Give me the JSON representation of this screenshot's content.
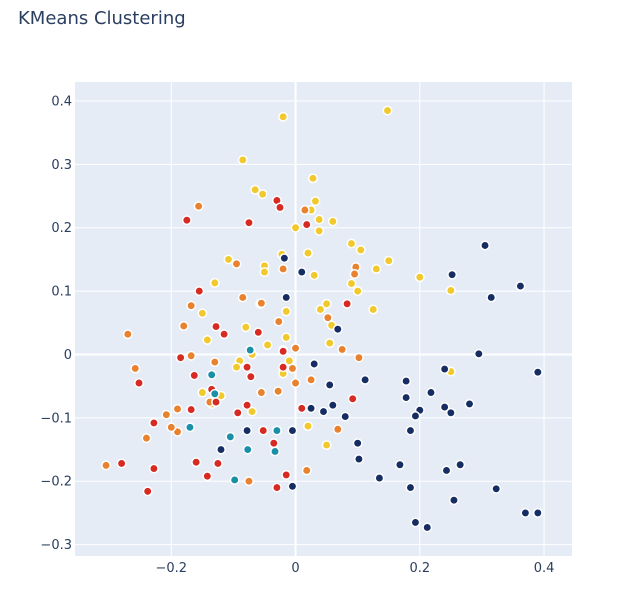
{
  "chart_data": {
    "type": "scatter",
    "title": "KMeans Clustering",
    "xlabel": "",
    "ylabel": "",
    "xlim": [
      -0.355,
      0.445
    ],
    "ylim": [
      -0.318,
      0.43
    ],
    "x_ticks": [
      -0.2,
      0,
      0.2,
      0.4
    ],
    "x_tick_labels": [
      "−0.2",
      "0",
      "0.2",
      "0.4"
    ],
    "y_ticks": [
      -0.3,
      -0.2,
      -0.1,
      0,
      0.1,
      0.2,
      0.3,
      0.4
    ],
    "y_tick_labels": [
      "−0.3",
      "−0.2",
      "−0.1",
      "0",
      "0.1",
      "0.2",
      "0.3",
      "0.4"
    ],
    "grid": true,
    "legend": "none",
    "plot_background": "#e5ecf6",
    "series": [
      {
        "color": "#f2c92c",
        "points": [
          [
            -0.02,
            0.375
          ],
          [
            0.148,
            0.385
          ],
          [
            -0.085,
            0.307
          ],
          [
            0.028,
            0.278
          ],
          [
            -0.065,
            0.26
          ],
          [
            -0.053,
            0.253
          ],
          [
            0.032,
            0.242
          ],
          [
            0.025,
            0.228
          ],
          [
            0.038,
            0.213
          ],
          [
            0.06,
            0.21
          ],
          [
            0.0,
            0.2
          ],
          [
            0.038,
            0.195
          ],
          [
            -0.108,
            0.15
          ],
          [
            0.09,
            0.175
          ],
          [
            0.105,
            0.165
          ],
          [
            -0.022,
            0.158
          ],
          [
            0.02,
            0.16
          ],
          [
            0.15,
            0.148
          ],
          [
            -0.05,
            0.14
          ],
          [
            0.13,
            0.135
          ],
          [
            -0.05,
            0.13
          ],
          [
            0.03,
            0.125
          ],
          [
            0.2,
            0.122
          ],
          [
            -0.13,
            0.113
          ],
          [
            0.09,
            0.112
          ],
          [
            0.1,
            0.1
          ],
          [
            0.25,
            0.101
          ],
          [
            -0.057,
            0.08
          ],
          [
            0.05,
            0.08
          ],
          [
            0.04,
            0.071
          ],
          [
            0.125,
            0.071
          ],
          [
            -0.15,
            0.065
          ],
          [
            -0.015,
            0.068
          ],
          [
            0.058,
            0.046
          ],
          [
            -0.08,
            0.043
          ],
          [
            -0.015,
            0.027
          ],
          [
            -0.142,
            0.023
          ],
          [
            0.055,
            0.018
          ],
          [
            -0.045,
            0.015
          ],
          [
            -0.02,
            0.007
          ],
          [
            -0.07,
            0.0
          ],
          [
            -0.09,
            -0.01
          ],
          [
            -0.01,
            -0.01
          ],
          [
            -0.095,
            -0.02
          ],
          [
            0.25,
            -0.027
          ],
          [
            -0.02,
            -0.03
          ],
          [
            -0.15,
            -0.06
          ],
          [
            -0.12,
            -0.065
          ],
          [
            -0.135,
            -0.078
          ],
          [
            -0.07,
            -0.09
          ],
          [
            0.02,
            -0.113
          ],
          [
            0.05,
            -0.143
          ]
        ]
      },
      {
        "color": "#e8822e",
        "points": [
          [
            -0.156,
            0.234
          ],
          [
            0.015,
            0.228
          ],
          [
            -0.02,
            0.135
          ],
          [
            -0.095,
            0.143
          ],
          [
            0.097,
            0.138
          ],
          [
            0.095,
            0.127
          ],
          [
            -0.168,
            0.077
          ],
          [
            -0.055,
            0.081
          ],
          [
            -0.085,
            0.09
          ],
          [
            0.052,
            0.058
          ],
          [
            -0.18,
            0.045
          ],
          [
            -0.027,
            0.052
          ],
          [
            -0.27,
            0.032
          ],
          [
            0.0,
            0.01
          ],
          [
            0.075,
            0.008
          ],
          [
            -0.13,
            -0.012
          ],
          [
            0.102,
            -0.005
          ],
          [
            -0.168,
            -0.002
          ],
          [
            -0.258,
            -0.022
          ],
          [
            -0.005,
            -0.022
          ],
          [
            0.025,
            -0.04
          ],
          [
            0.0,
            -0.045
          ],
          [
            -0.055,
            -0.06
          ],
          [
            -0.028,
            -0.058
          ],
          [
            -0.19,
            -0.086
          ],
          [
            -0.208,
            -0.095
          ],
          [
            -0.138,
            -0.075
          ],
          [
            0.068,
            -0.118
          ],
          [
            -0.19,
            -0.122
          ],
          [
            -0.2,
            -0.115
          ],
          [
            -0.24,
            -0.132
          ],
          [
            0.018,
            -0.183
          ],
          [
            -0.305,
            -0.175
          ],
          [
            -0.075,
            -0.2
          ]
        ]
      },
      {
        "color": "#d62a22",
        "points": [
          [
            -0.175,
            0.212
          ],
          [
            -0.075,
            0.208
          ],
          [
            -0.03,
            0.243
          ],
          [
            -0.025,
            0.232
          ],
          [
            0.018,
            0.205
          ],
          [
            -0.155,
            0.1
          ],
          [
            0.083,
            0.08
          ],
          [
            -0.128,
            0.044
          ],
          [
            -0.115,
            0.032
          ],
          [
            -0.06,
            0.035
          ],
          [
            -0.02,
            0.005
          ],
          [
            -0.185,
            -0.005
          ],
          [
            -0.078,
            -0.02
          ],
          [
            -0.02,
            -0.02
          ],
          [
            -0.163,
            -0.033
          ],
          [
            -0.072,
            -0.035
          ],
          [
            -0.252,
            -0.045
          ],
          [
            -0.135,
            -0.055
          ],
          [
            -0.128,
            -0.075
          ],
          [
            -0.078,
            -0.08
          ],
          [
            -0.168,
            -0.087
          ],
          [
            -0.093,
            -0.092
          ],
          [
            0.092,
            -0.07
          ],
          [
            0.01,
            -0.085
          ],
          [
            -0.228,
            -0.108
          ],
          [
            -0.052,
            -0.12
          ],
          [
            -0.035,
            -0.14
          ],
          [
            -0.16,
            -0.17
          ],
          [
            -0.125,
            -0.172
          ],
          [
            -0.28,
            -0.172
          ],
          [
            -0.228,
            -0.18
          ],
          [
            -0.015,
            -0.19
          ],
          [
            -0.142,
            -0.192
          ],
          [
            -0.03,
            -0.21
          ],
          [
            -0.238,
            -0.216
          ]
        ]
      },
      {
        "color": "#152d63",
        "points": [
          [
            0.305,
            0.172
          ],
          [
            -0.018,
            0.152
          ],
          [
            0.252,
            0.126
          ],
          [
            0.01,
            0.13
          ],
          [
            0.362,
            0.108
          ],
          [
            0.315,
            0.09
          ],
          [
            -0.015,
            0.09
          ],
          [
            0.068,
            0.04
          ],
          [
            0.295,
            0.001
          ],
          [
            0.03,
            -0.015
          ],
          [
            0.24,
            -0.023
          ],
          [
            0.39,
            -0.028
          ],
          [
            0.112,
            -0.04
          ],
          [
            0.178,
            -0.042
          ],
          [
            0.055,
            -0.048
          ],
          [
            0.218,
            -0.06
          ],
          [
            0.178,
            -0.068
          ],
          [
            0.28,
            -0.078
          ],
          [
            0.06,
            -0.08
          ],
          [
            0.24,
            -0.083
          ],
          [
            0.025,
            -0.085
          ],
          [
            0.045,
            -0.09
          ],
          [
            0.2,
            -0.088
          ],
          [
            0.25,
            -0.092
          ],
          [
            0.193,
            -0.097
          ],
          [
            0.08,
            -0.098
          ],
          [
            -0.005,
            -0.12
          ],
          [
            -0.078,
            -0.12
          ],
          [
            0.185,
            -0.12
          ],
          [
            0.1,
            -0.14
          ],
          [
            -0.12,
            -0.15
          ],
          [
            0.102,
            -0.165
          ],
          [
            0.168,
            -0.174
          ],
          [
            0.265,
            -0.174
          ],
          [
            0.243,
            -0.183
          ],
          [
            0.135,
            -0.195
          ],
          [
            -0.005,
            -0.208
          ],
          [
            0.185,
            -0.21
          ],
          [
            0.323,
            -0.212
          ],
          [
            0.255,
            -0.23
          ],
          [
            0.37,
            -0.25
          ],
          [
            0.39,
            -0.25
          ],
          [
            0.193,
            -0.265
          ],
          [
            0.212,
            -0.273
          ]
        ]
      },
      {
        "color": "#1a8fa8",
        "points": [
          [
            -0.073,
            0.007
          ],
          [
            -0.135,
            -0.032
          ],
          [
            -0.13,
            -0.062
          ],
          [
            -0.17,
            -0.115
          ],
          [
            -0.03,
            -0.12
          ],
          [
            -0.105,
            -0.13
          ],
          [
            -0.077,
            -0.15
          ],
          [
            -0.033,
            -0.153
          ],
          [
            -0.098,
            -0.198
          ]
        ]
      }
    ]
  }
}
